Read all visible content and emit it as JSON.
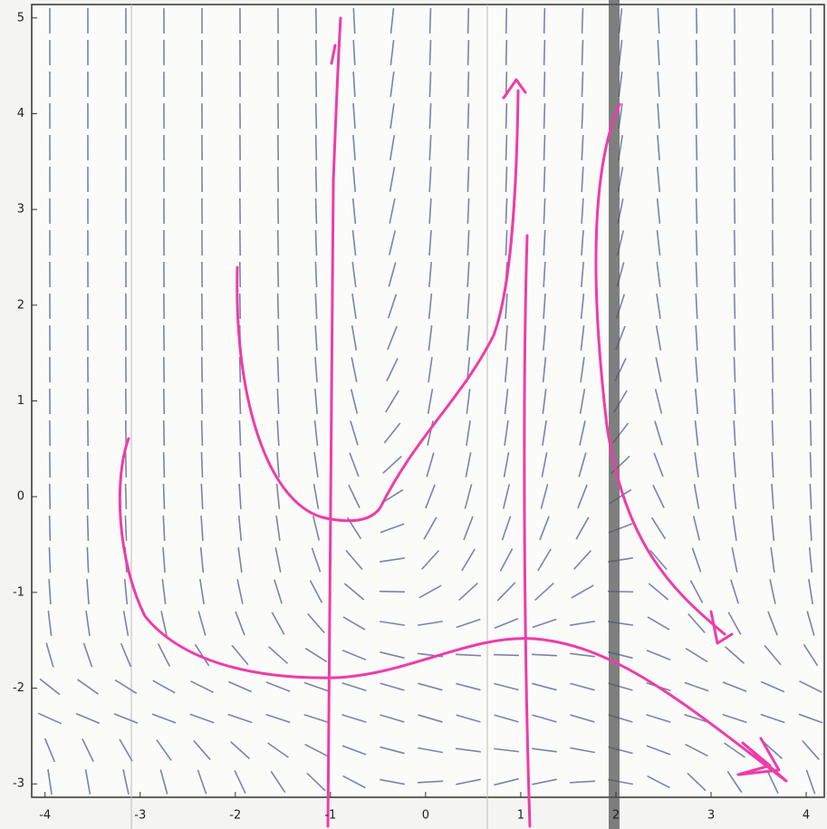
{
  "chart_data": {
    "type": "slope_field",
    "xlim": [
      -4.14,
      4.19
    ],
    "ylim": [
      -3.14,
      5.14
    ],
    "xticks": [
      -4,
      -3,
      -2,
      -1,
      0,
      1,
      2,
      3,
      4
    ],
    "yticks": [
      -3,
      -2,
      -1,
      0,
      1,
      2,
      3,
      4,
      5
    ]
  }
}
